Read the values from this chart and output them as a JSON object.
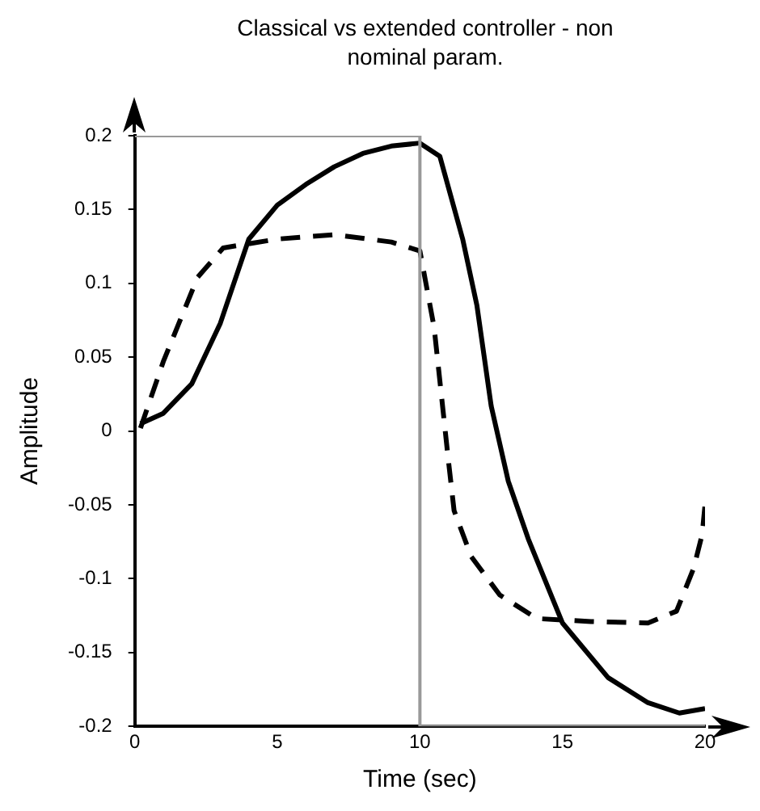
{
  "chart_data": {
    "type": "line",
    "title": "Classical vs extended controller - non nominal param.",
    "xlabel": "Time (sec)",
    "ylabel": "Amplitude",
    "xlim": [
      0,
      20
    ],
    "xticks": [
      0,
      5,
      10,
      15,
      20
    ],
    "ylim": [
      -0.2,
      0.2
    ],
    "yticks": [
      -0.2,
      -0.15,
      -0.1,
      -0.05,
      0,
      0.05,
      0.1,
      0.15,
      0.2
    ],
    "grid": false,
    "legend": false,
    "marker": "none",
    "series": [
      {
        "color": "#999999",
        "line_style": "solid",
        "x": [
          0,
          10,
          10,
          20
        ],
        "values": [
          0.2,
          0.2,
          -0.2,
          -0.2
        ]
      },
      {
        "color": "#000000",
        "line_style": "solid",
        "x": [
          0.2,
          1,
          2,
          3,
          4,
          5,
          6,
          7,
          8,
          9,
          10,
          10.7,
          11.5,
          12,
          12.5,
          13.1,
          13.8,
          15,
          16.6,
          18,
          19.1,
          20
        ],
        "values": [
          0.005,
          0.012,
          0.032,
          0.073,
          0.13,
          0.153,
          0.167,
          0.179,
          0.188,
          0.193,
          0.195,
          0.186,
          0.13,
          0.085,
          0.017,
          -0.034,
          -0.073,
          -0.13,
          -0.167,
          -0.184,
          -0.191,
          -0.188
        ]
      },
      {
        "color": "#000000",
        "line_style": "dashed",
        "x": [
          0.2,
          1,
          2.2,
          3.1,
          5,
          7,
          9,
          10,
          10.5,
          11,
          11.2,
          11.8,
          12.8,
          14.1,
          16,
          18,
          19,
          19.6,
          19.9,
          20
        ],
        "values": [
          0.002,
          0.047,
          0.104,
          0.124,
          0.13,
          0.133,
          0.128,
          0.122,
          0.07,
          -0.02,
          -0.054,
          -0.085,
          -0.111,
          -0.127,
          -0.129,
          -0.13,
          -0.122,
          -0.093,
          -0.07,
          -0.05
        ]
      }
    ]
  }
}
